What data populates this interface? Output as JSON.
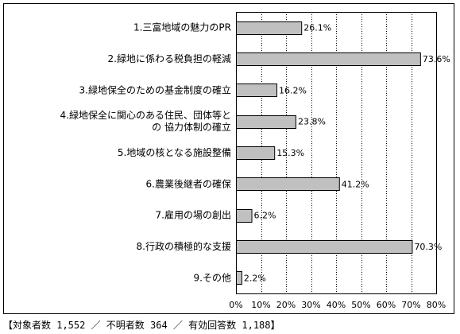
{
  "chart_data": {
    "type": "bar",
    "orientation": "horizontal",
    "categories": [
      "1.三富地域の魅力のPR",
      "2.緑地に係わる税負担の軽減",
      "3.緑地保全のための基金制度の確立",
      "4.緑地保全に関心のある住民、団体等との 協力体制の確立",
      "5.地域の核となる施設整備",
      "6.農業後継者の確保",
      "7.雇用の場の創出",
      "8.行政の積極的な支援",
      "9.その他"
    ],
    "category_lines": [
      [
        "1.三富地域の魅力のPR"
      ],
      [
        "2.緑地に係わる税負担の軽減"
      ],
      [
        "3.緑地保全のための基金制度の確立"
      ],
      [
        "4.緑地保全に関心のある住民、団体等と",
        "の 協力体制の確立"
      ],
      [
        "5.地域の核となる施設整備"
      ],
      [
        "6.農業後継者の確保"
      ],
      [
        "7.雇用の場の創出"
      ],
      [
        "8.行政の積極的な支援"
      ],
      [
        "9.その他"
      ]
    ],
    "values": [
      26.1,
      73.6,
      16.2,
      23.8,
      15.3,
      41.2,
      6.2,
      70.3,
      2.2
    ],
    "value_labels": [
      "26.1%",
      "73.6%",
      "16.2%",
      "23.8%",
      "15.3%",
      "41.2%",
      "6.2%",
      "70.3%",
      "2.2%"
    ],
    "xlim": [
      0,
      80
    ],
    "xticks": [
      0,
      10,
      20,
      30,
      40,
      50,
      60,
      70,
      80
    ],
    "xtick_labels": [
      "0%",
      "10%",
      "20%",
      "30%",
      "40%",
      "50%",
      "60%",
      "70%",
      "80%"
    ],
    "title": "",
    "xlabel": "",
    "ylabel": "",
    "grid": true,
    "bar_color": "#c0c0c0"
  },
  "footnote": "【対象者数 1,552 ／ 不明者数 364 ／ 有効回答数 1,188】"
}
